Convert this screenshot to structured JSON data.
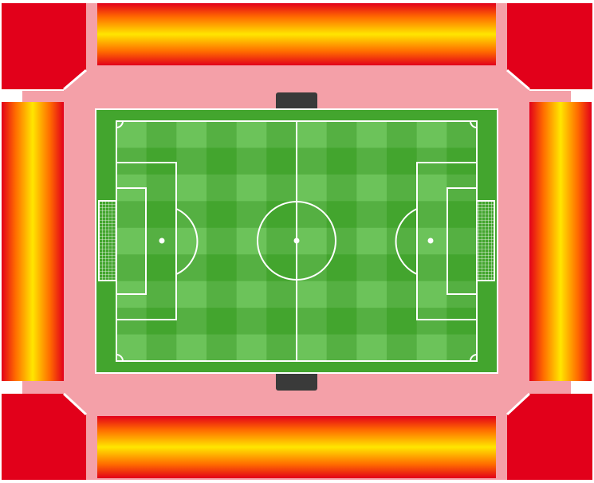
{
  "colors": {
    "corner_red": "#e2001a",
    "concourse_pink": "#f4a0a8",
    "gradient_edge": "#e2001a",
    "gradient_mid": "#ff8c00",
    "gradient_center": "#ffe600",
    "pitch_dark": "#43a52e",
    "pitch_mid": "#55b042",
    "pitch_light": "#6cc35a",
    "lines": "#ffffff",
    "tunnel": "#3a3a3a"
  },
  "stands": [
    {
      "id": "north",
      "name": "north-stand"
    },
    {
      "id": "south",
      "name": "south-stand"
    },
    {
      "id": "west",
      "name": "west-stand"
    },
    {
      "id": "east",
      "name": "east-stand"
    }
  ],
  "corners": [
    "north-west",
    "north-east",
    "south-west",
    "south-east"
  ]
}
